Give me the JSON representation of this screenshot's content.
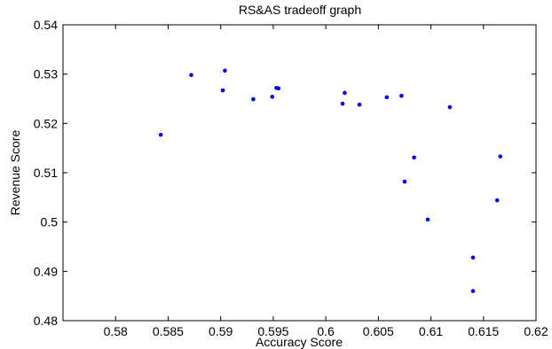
{
  "chart_data": {
    "type": "scatter",
    "title": "RS&AS tradeoff graph",
    "xlabel": "Accuracy Score",
    "ylabel": "Revenue Score",
    "xlim": [
      0.575,
      0.62
    ],
    "ylim": [
      0.48,
      0.54
    ],
    "xticks": [
      0.58,
      0.585,
      0.59,
      0.595,
      0.6,
      0.605,
      0.61,
      0.615,
      0.62
    ],
    "xtick_labels": [
      "0.58",
      "0.585",
      "0.59",
      "0.595",
      "0.6",
      "0.605",
      "0.61",
      "0.615",
      "0.62"
    ],
    "yticks": [
      0.48,
      0.49,
      0.5,
      0.51,
      0.52,
      0.53,
      0.54
    ],
    "ytick_labels": [
      "0.48",
      "0.49",
      "0.5",
      "0.51",
      "0.52",
      "0.53",
      "0.54"
    ],
    "grid": false,
    "marker_color": "#0000ff",
    "points": [
      {
        "x": 0.5843,
        "y": 0.5177
      },
      {
        "x": 0.5872,
        "y": 0.5298
      },
      {
        "x": 0.5902,
        "y": 0.5267
      },
      {
        "x": 0.5904,
        "y": 0.5307
      },
      {
        "x": 0.5931,
        "y": 0.5249
      },
      {
        "x": 0.5949,
        "y": 0.5254
      },
      {
        "x": 0.5953,
        "y": 0.5272
      },
      {
        "x": 0.5955,
        "y": 0.5271
      },
      {
        "x": 0.6016,
        "y": 0.524
      },
      {
        "x": 0.6018,
        "y": 0.5262
      },
      {
        "x": 0.6032,
        "y": 0.5238
      },
      {
        "x": 0.6058,
        "y": 0.5253
      },
      {
        "x": 0.6072,
        "y": 0.5256
      },
      {
        "x": 0.6075,
        "y": 0.5082
      },
      {
        "x": 0.6084,
        "y": 0.5131
      },
      {
        "x": 0.6097,
        "y": 0.5005
      },
      {
        "x": 0.6118,
        "y": 0.5233
      },
      {
        "x": 0.614,
        "y": 0.4928
      },
      {
        "x": 0.614,
        "y": 0.486
      },
      {
        "x": 0.6163,
        "y": 0.5044
      },
      {
        "x": 0.6166,
        "y": 0.5133
      }
    ]
  }
}
